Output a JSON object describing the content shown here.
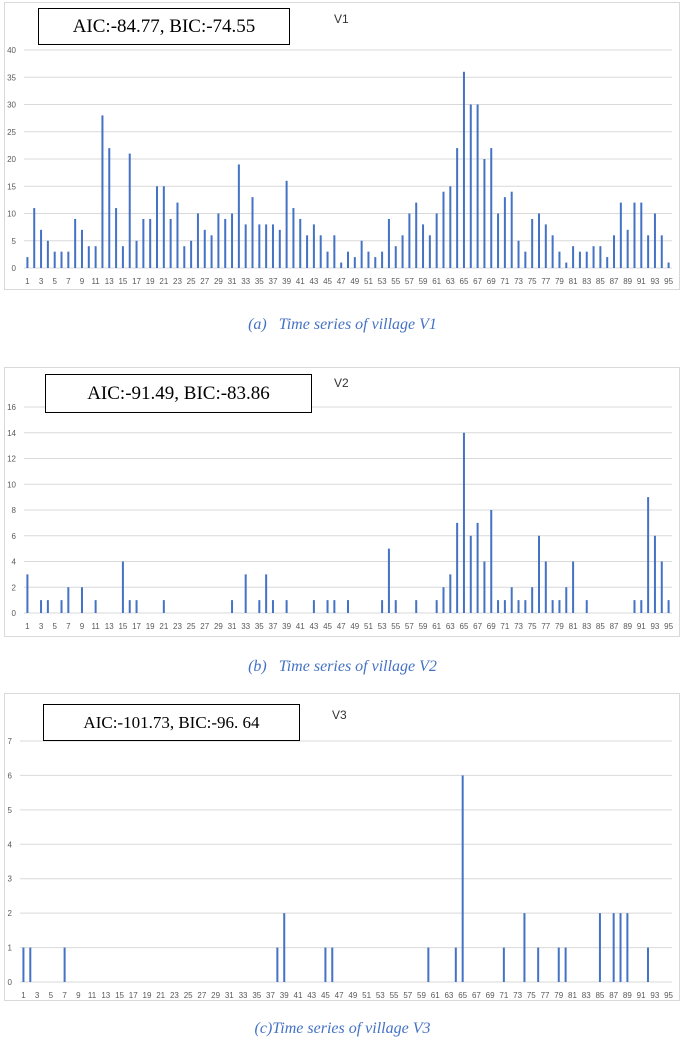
{
  "chart_data": [
    {
      "type": "bar",
      "title": "V1",
      "annotation": "AIC:-84.77, BIC:-74.55",
      "caption_label": "(a)",
      "caption": "Time series of village V1",
      "ylim": [
        0,
        40
      ],
      "yticks": [
        0,
        5,
        10,
        15,
        20,
        25,
        30,
        35,
        40
      ],
      "grid": true,
      "x": [
        1,
        2,
        3,
        4,
        5,
        6,
        7,
        8,
        9,
        10,
        11,
        12,
        13,
        14,
        15,
        16,
        17,
        18,
        19,
        20,
        21,
        22,
        23,
        24,
        25,
        26,
        27,
        28,
        29,
        30,
        31,
        32,
        33,
        34,
        35,
        36,
        37,
        38,
        39,
        40,
        41,
        42,
        43,
        44,
        45,
        46,
        47,
        48,
        49,
        50,
        51,
        52,
        53,
        54,
        55,
        56,
        57,
        58,
        59,
        60,
        61,
        62,
        63,
        64,
        65,
        66,
        67,
        68,
        69,
        70,
        71,
        72,
        73,
        74,
        75,
        76,
        77,
        78,
        79,
        80,
        81,
        82,
        83,
        84,
        85,
        86,
        87,
        88,
        89,
        90,
        91,
        92,
        93,
        94,
        95
      ],
      "xticklabels": [
        "1",
        "3",
        "5",
        "7",
        "9",
        "11",
        "13",
        "15",
        "17",
        "19",
        "21",
        "23",
        "25",
        "27",
        "29",
        "31",
        "33",
        "35",
        "37",
        "39",
        "41",
        "43",
        "45",
        "47",
        "49",
        "51",
        "53",
        "55",
        "57",
        "59",
        "61",
        "63",
        "65",
        "67",
        "69",
        "71",
        "73",
        "75",
        "77",
        "79",
        "81",
        "83",
        "85",
        "87",
        "89",
        "91",
        "93",
        "95"
      ],
      "values": [
        2,
        11,
        7,
        5,
        3,
        3,
        3,
        9,
        7,
        4,
        4,
        28,
        22,
        11,
        4,
        21,
        5,
        9,
        9,
        15,
        15,
        9,
        12,
        4,
        5,
        10,
        7,
        6,
        10,
        9,
        10,
        19,
        8,
        13,
        8,
        8,
        8,
        7,
        16,
        11,
        9,
        6,
        8,
        6,
        3,
        6,
        1,
        3,
        2,
        5,
        3,
        2,
        3,
        9,
        4,
        6,
        10,
        12,
        8,
        6,
        10,
        14,
        15,
        22,
        36,
        30,
        30,
        20,
        22,
        10,
        13,
        14,
        5,
        3,
        9,
        10,
        8,
        6,
        3,
        1,
        4,
        3,
        3,
        4,
        4,
        2,
        6,
        12,
        7,
        12,
        12,
        6,
        10,
        6,
        1
      ]
    },
    {
      "type": "bar",
      "title": "V2",
      "annotation": "AIC:-91.49, BIC:-83.86",
      "caption_label": "(b)",
      "caption": "Time series of village V2",
      "ylim": [
        0,
        16
      ],
      "yticks": [
        0,
        2,
        4,
        6,
        8,
        10,
        12,
        14,
        16
      ],
      "grid": true,
      "x": [
        1,
        2,
        3,
        4,
        5,
        6,
        7,
        8,
        9,
        10,
        11,
        12,
        13,
        14,
        15,
        16,
        17,
        18,
        19,
        20,
        21,
        22,
        23,
        24,
        25,
        26,
        27,
        28,
        29,
        30,
        31,
        32,
        33,
        34,
        35,
        36,
        37,
        38,
        39,
        40,
        41,
        42,
        43,
        44,
        45,
        46,
        47,
        48,
        49,
        50,
        51,
        52,
        53,
        54,
        55,
        56,
        57,
        58,
        59,
        60,
        61,
        62,
        63,
        64,
        65,
        66,
        67,
        68,
        69,
        70,
        71,
        72,
        73,
        74,
        75,
        76,
        77,
        78,
        79,
        80,
        81,
        82,
        83,
        84,
        85,
        86,
        87,
        88,
        89,
        90,
        91,
        92,
        93,
        94,
        95
      ],
      "xticklabels": [
        "1",
        "3",
        "5",
        "7",
        "9",
        "11",
        "13",
        "15",
        "17",
        "19",
        "21",
        "23",
        "25",
        "27",
        "29",
        "31",
        "33",
        "35",
        "37",
        "39",
        "41",
        "43",
        "45",
        "47",
        "49",
        "51",
        "53",
        "55",
        "57",
        "59",
        "61",
        "63",
        "65",
        "67",
        "69",
        "71",
        "73",
        "75",
        "77",
        "79",
        "81",
        "83",
        "85",
        "87",
        "89",
        "91",
        "93",
        "95"
      ],
      "values": [
        3,
        0,
        1,
        1,
        0,
        1,
        2,
        0,
        2,
        0,
        1,
        0,
        0,
        0,
        4,
        1,
        1,
        0,
        0,
        0,
        1,
        0,
        0,
        0,
        0,
        0,
        0,
        0,
        0,
        0,
        1,
        0,
        3,
        0,
        1,
        3,
        1,
        0,
        1,
        0,
        0,
        0,
        1,
        0,
        1,
        1,
        0,
        1,
        0,
        0,
        0,
        0,
        1,
        5,
        1,
        0,
        0,
        1,
        0,
        0,
        1,
        2,
        3,
        7,
        14,
        6,
        7,
        4,
        8,
        1,
        1,
        2,
        1,
        1,
        2,
        6,
        4,
        1,
        1,
        2,
        4,
        0,
        1,
        0,
        0,
        0,
        0,
        0,
        0,
        1,
        1,
        9,
        6,
        4,
        1
      ]
    },
    {
      "type": "bar",
      "title": "V3",
      "annotation": "AIC:-101.73, BIC:-96. 64",
      "caption_label": "(c)",
      "caption": "Time series of village V3",
      "ylim": [
        0,
        7
      ],
      "yticks": [
        0,
        1,
        2,
        3,
        4,
        5,
        6,
        7
      ],
      "grid": true,
      "x": [
        1,
        2,
        3,
        4,
        5,
        6,
        7,
        8,
        9,
        10,
        11,
        12,
        13,
        14,
        15,
        16,
        17,
        18,
        19,
        20,
        21,
        22,
        23,
        24,
        25,
        26,
        27,
        28,
        29,
        30,
        31,
        32,
        33,
        34,
        35,
        36,
        37,
        38,
        39,
        40,
        41,
        42,
        43,
        44,
        45,
        46,
        47,
        48,
        49,
        50,
        51,
        52,
        53,
        54,
        55,
        56,
        57,
        58,
        59,
        60,
        61,
        62,
        63,
        64,
        65,
        66,
        67,
        68,
        69,
        70,
        71,
        72,
        73,
        74,
        75,
        76,
        77,
        78,
        79,
        80,
        81,
        82,
        83,
        84,
        85,
        86,
        87,
        88,
        89,
        90,
        91,
        92,
        93,
        94,
        95
      ],
      "xticklabels": [
        "1",
        "3",
        "5",
        "7",
        "9",
        "11",
        "13",
        "15",
        "17",
        "19",
        "21",
        "23",
        "25",
        "27",
        "29",
        "31",
        "33",
        "35",
        "37",
        "39",
        "41",
        "43",
        "45",
        "47",
        "49",
        "51",
        "53",
        "55",
        "57",
        "59",
        "61",
        "63",
        "65",
        "67",
        "69",
        "71",
        "73",
        "75",
        "77",
        "79",
        "81",
        "83",
        "85",
        "87",
        "89",
        "91",
        "93",
        "95"
      ],
      "values": [
        1,
        1,
        0,
        0,
        0,
        0,
        1,
        0,
        0,
        0,
        0,
        0,
        0,
        0,
        0,
        0,
        0,
        0,
        0,
        0,
        0,
        0,
        0,
        0,
        0,
        0,
        0,
        0,
        0,
        0,
        0,
        0,
        0,
        0,
        0,
        0,
        0,
        1,
        2,
        0,
        0,
        0,
        0,
        0,
        1,
        1,
        0,
        0,
        0,
        0,
        0,
        0,
        0,
        0,
        0,
        0,
        0,
        0,
        0,
        1,
        0,
        0,
        0,
        1,
        6,
        0,
        0,
        0,
        0,
        0,
        1,
        0,
        0,
        2,
        0,
        1,
        0,
        0,
        1,
        1,
        0,
        0,
        0,
        0,
        2,
        0,
        2,
        2,
        2,
        0,
        0,
        1,
        0,
        0,
        0
      ]
    }
  ],
  "colors": {
    "bar": "#4472c4",
    "grid": "#d9d9d9",
    "caption": "#4472c4"
  }
}
